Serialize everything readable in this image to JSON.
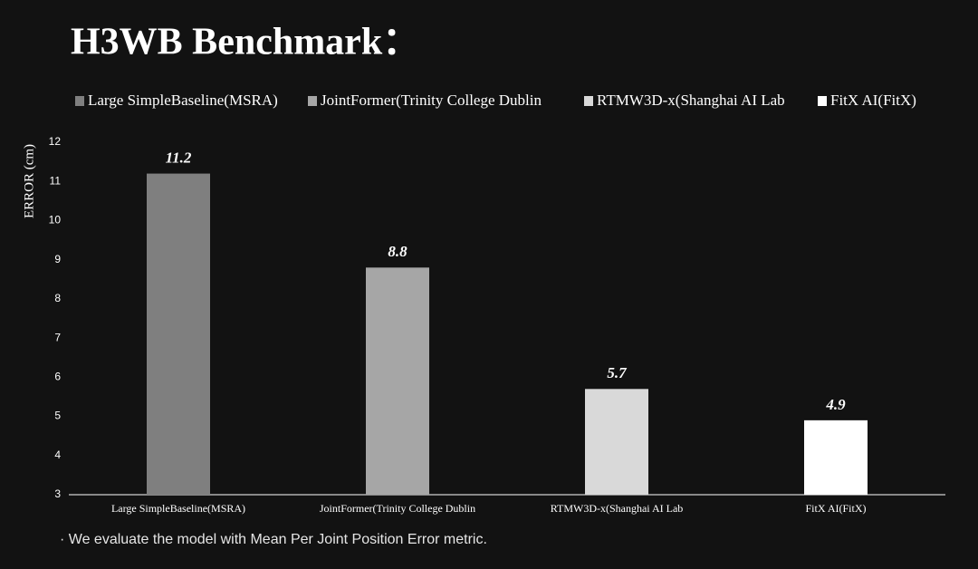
{
  "chart_data": {
    "type": "bar",
    "title": "H3WB Benchmark：",
    "categories": [
      "Large SimpleBaseline(MSRA)",
      "JointFormer(Trinity College Dublin",
      "RTMW3D-x(Shanghai AI Lab",
      "FitX AI(FitX)"
    ],
    "values": [
      11.2,
      8.8,
      5.7,
      4.9
    ],
    "colors": [
      "#7f7f7f",
      "#a6a6a6",
      "#d9d9d9",
      "#ffffff"
    ],
    "ylabel": "ERROR (cm)",
    "ylim": [
      3,
      12
    ],
    "yticks": [
      3,
      4,
      5,
      6,
      7,
      8,
      9,
      10,
      11,
      12
    ],
    "grid": false,
    "legend": "top",
    "footnote": "· We evaluate the model with Mean Per Joint Position Error metric."
  }
}
